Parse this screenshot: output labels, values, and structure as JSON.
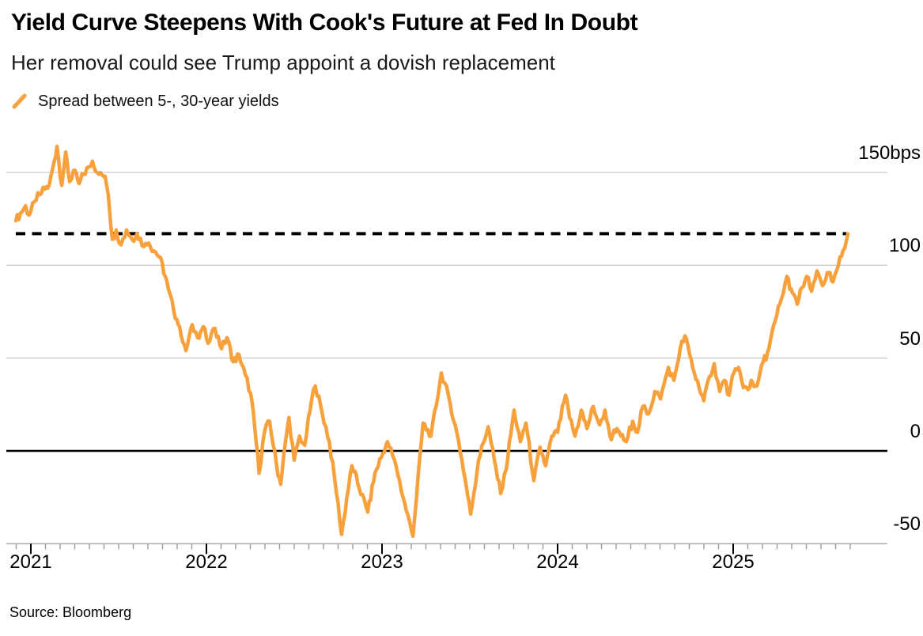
{
  "header": {
    "title": "Yield Curve Steepens With Cook's Future at Fed In Doubt",
    "subtitle": "Her removal could see Trump appoint a dovish replacement"
  },
  "legend": {
    "label": "Spread between 5-, 30-year yields",
    "marker": "orange-slash",
    "marker_color": "#F7A13C"
  },
  "source": "Source: Bloomberg",
  "colors": {
    "line": "#F7A13C",
    "gridline": "#cccccc",
    "axis": "#aaaaaa",
    "zero_line": "#000000",
    "dashed_line": "#000000",
    "text": "#000000"
  },
  "chart_data": {
    "type": "line",
    "title": "Yield Curve Steepens With Cook's Future at Fed In Doubt",
    "subtitle": "Her removal could see Trump appoint a dovish replacement",
    "unit": "bps",
    "grid": "horizontal",
    "legend_position": "top-left",
    "y_ticks": [
      {
        "value": 150,
        "label": "150bps"
      },
      {
        "value": 100,
        "label": "100"
      },
      {
        "value": 50,
        "label": "50"
      },
      {
        "value": 0,
        "label": "0"
      },
      {
        "value": -50,
        "label": "-50"
      }
    ],
    "x_ticks": [
      {
        "t": 0,
        "label": "2021"
      },
      {
        "t": 1,
        "label": "2022"
      },
      {
        "t": 2,
        "label": "2023"
      },
      {
        "t": 3,
        "label": "2024"
      },
      {
        "t": 4,
        "label": "2025"
      }
    ],
    "x_minor_tick_interval": "monthly",
    "x_range_years": [
      -0.085,
      4.667
    ],
    "ylim": [
      -62,
      168
    ],
    "reference_lines": [
      {
        "style": "dashed",
        "value": 117,
        "meaning": "latest spread level"
      },
      {
        "style": "solid",
        "value": 0,
        "meaning": "zero line"
      }
    ],
    "series": [
      {
        "name": "Spread between 5-, 30-year yields",
        "color": "#F7A13C",
        "x_unit": "years_since_2021-01-01",
        "y_unit": "bps",
        "points": [
          [
            -0.085,
            124
          ],
          [
            -0.06,
            128
          ],
          [
            -0.03,
            132
          ],
          [
            -0.01,
            127
          ],
          [
            0.03,
            135
          ],
          [
            0.05,
            138
          ],
          [
            0.08,
            141
          ],
          [
            0.104,
            143
          ],
          [
            0.126,
            153
          ],
          [
            0.149,
            164
          ],
          [
            0.176,
            143
          ],
          [
            0.198,
            161
          ],
          [
            0.221,
            145
          ],
          [
            0.243,
            151
          ],
          [
            0.275,
            144
          ],
          [
            0.3,
            149
          ],
          [
            0.33,
            153
          ],
          [
            0.351,
            156
          ],
          [
            0.387,
            149
          ],
          [
            0.423,
            148
          ],
          [
            0.441,
            138
          ],
          [
            0.464,
            114
          ],
          [
            0.486,
            119
          ],
          [
            0.514,
            111
          ],
          [
            0.545,
            119
          ],
          [
            0.577,
            114
          ],
          [
            0.604,
            117
          ],
          [
            0.644,
            110
          ],
          [
            0.671,
            112
          ],
          [
            0.711,
            107
          ],
          [
            0.739,
            104
          ],
          [
            0.784,
            87
          ],
          [
            0.815,
            75
          ],
          [
            0.847,
            67
          ],
          [
            0.883,
            54
          ],
          [
            0.919,
            68
          ],
          [
            0.95,
            61
          ],
          [
            0.982,
            67
          ],
          [
            1.009,
            58
          ],
          [
            1.049,
            66
          ],
          [
            1.086,
            55
          ],
          [
            1.117,
            61
          ],
          [
            1.153,
            48
          ],
          [
            1.185,
            52
          ],
          [
            1.221,
            41
          ],
          [
            1.252,
            31
          ],
          [
            1.275,
            13
          ],
          [
            1.3,
            -12
          ],
          [
            1.33,
            10
          ],
          [
            1.36,
            16
          ],
          [
            1.4,
            -8
          ],
          [
            1.423,
            -18
          ],
          [
            1.45,
            5
          ],
          [
            1.47,
            18
          ],
          [
            1.5,
            -5
          ],
          [
            1.53,
            8
          ],
          [
            1.56,
            3
          ],
          [
            1.6,
            28
          ],
          [
            1.62,
            35
          ],
          [
            1.66,
            20
          ],
          [
            1.7,
            5
          ],
          [
            1.73,
            -15
          ],
          [
            1.75,
            -28
          ],
          [
            1.77,
            -45
          ],
          [
            1.8,
            -25
          ],
          [
            1.829,
            -8
          ],
          [
            1.87,
            -20
          ],
          [
            1.919,
            -33
          ],
          [
            1.96,
            -12
          ],
          [
            2.031,
            5
          ],
          [
            2.08,
            -8
          ],
          [
            2.12,
            -25
          ],
          [
            2.176,
            -46
          ],
          [
            2.234,
            15
          ],
          [
            2.279,
            8
          ],
          [
            2.338,
            42
          ],
          [
            2.378,
            30
          ],
          [
            2.437,
            5
          ],
          [
            2.473,
            -15
          ],
          [
            2.505,
            -34
          ],
          [
            2.55,
            -5
          ],
          [
            2.604,
            13
          ],
          [
            2.64,
            -5
          ],
          [
            2.676,
            -23
          ],
          [
            2.707,
            -10
          ],
          [
            2.752,
            22
          ],
          [
            2.788,
            5
          ],
          [
            2.82,
            15
          ],
          [
            2.865,
            -16
          ],
          [
            2.9,
            2
          ],
          [
            2.932,
            -8
          ],
          [
            2.968,
            8
          ],
          [
            3.0,
            10
          ],
          [
            3.045,
            30
          ],
          [
            3.068,
            18
          ],
          [
            3.099,
            8
          ],
          [
            3.135,
            22
          ],
          [
            3.167,
            12
          ],
          [
            3.203,
            24
          ],
          [
            3.239,
            14
          ],
          [
            3.27,
            22
          ],
          [
            3.306,
            6
          ],
          [
            3.338,
            12
          ],
          [
            3.36,
            8
          ],
          [
            3.392,
            5
          ],
          [
            3.428,
            16
          ],
          [
            3.455,
            10
          ],
          [
            3.486,
            24
          ],
          [
            3.518,
            20
          ],
          [
            3.554,
            32
          ],
          [
            3.586,
            28
          ],
          [
            3.631,
            45
          ],
          [
            3.662,
            38
          ],
          [
            3.698,
            55
          ],
          [
            3.725,
            62
          ],
          [
            3.752,
            52
          ],
          [
            3.779,
            42
          ],
          [
            3.806,
            34
          ],
          [
            3.833,
            27
          ],
          [
            3.865,
            40
          ],
          [
            3.892,
            47
          ],
          [
            3.923,
            32
          ],
          [
            3.95,
            38
          ],
          [
            3.977,
            30
          ],
          [
            4.004,
            42
          ],
          [
            4.03,
            45
          ],
          [
            4.058,
            34
          ],
          [
            4.085,
            33
          ],
          [
            4.103,
            38
          ],
          [
            4.135,
            35
          ],
          [
            4.171,
            48
          ],
          [
            4.203,
            55
          ],
          [
            4.239,
            70
          ],
          [
            4.275,
            82
          ],
          [
            4.306,
            94
          ],
          [
            4.338,
            85
          ],
          [
            4.365,
            79
          ],
          [
            4.392,
            88
          ],
          [
            4.419,
            94
          ],
          [
            4.446,
            86
          ],
          [
            4.477,
            97
          ],
          [
            4.509,
            89
          ],
          [
            4.536,
            96
          ],
          [
            4.568,
            91
          ],
          [
            4.599,
            100
          ],
          [
            4.626,
            108
          ],
          [
            4.653,
            117
          ]
        ]
      }
    ]
  }
}
